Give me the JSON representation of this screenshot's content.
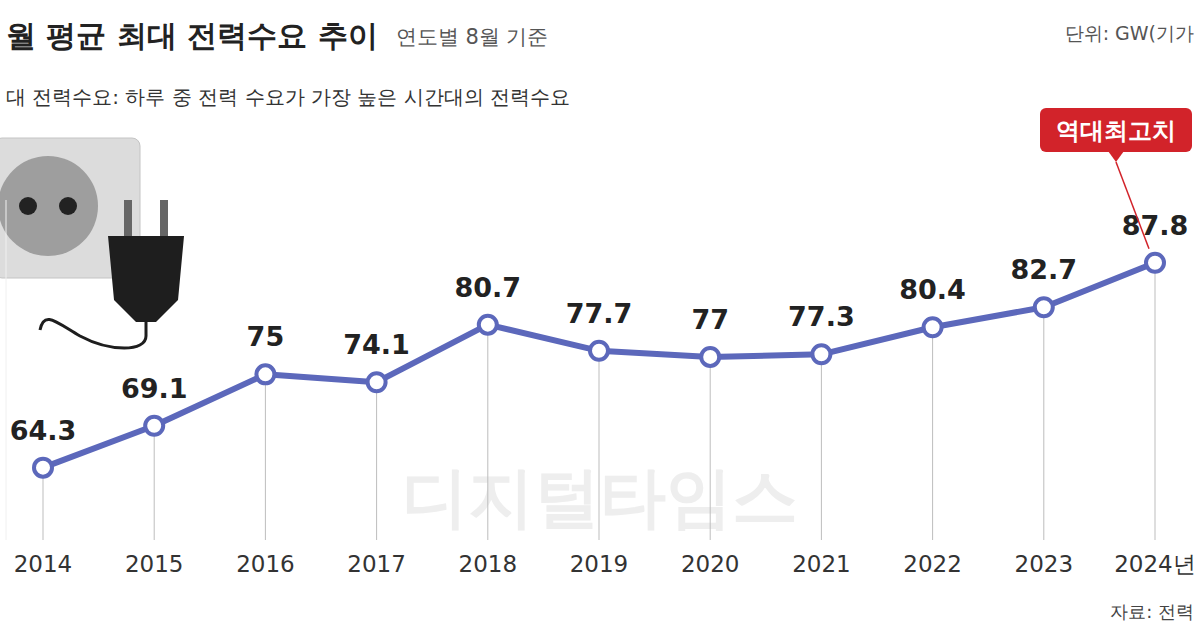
{
  "chart_data": {
    "type": "line",
    "title": "월 평균 최대 전력수요 추이",
    "subtitle": "연도별 8월 기준",
    "unit": "단위: GW(기가",
    "note": "대 전력수요: 하루 중 전력 수요가 가장 높은 시간대의 전력수요",
    "annotation": "역대최고치",
    "source": "자료: 전력",
    "watermark": "디지털타임스",
    "categories": [
      "2014",
      "2015",
      "2016",
      "2017",
      "2018",
      "2019",
      "2020",
      "2021",
      "2022",
      "2023",
      "2024년"
    ],
    "values": [
      64.3,
      69.1,
      75.0,
      74.1,
      80.7,
      77.7,
      77.0,
      77.3,
      80.4,
      82.7,
      87.8
    ],
    "color": "#5c68bb",
    "marker": "circle",
    "data_labels": true,
    "grid": true,
    "tick_labels": "x",
    "ylim": [
      56,
      95
    ]
  }
}
